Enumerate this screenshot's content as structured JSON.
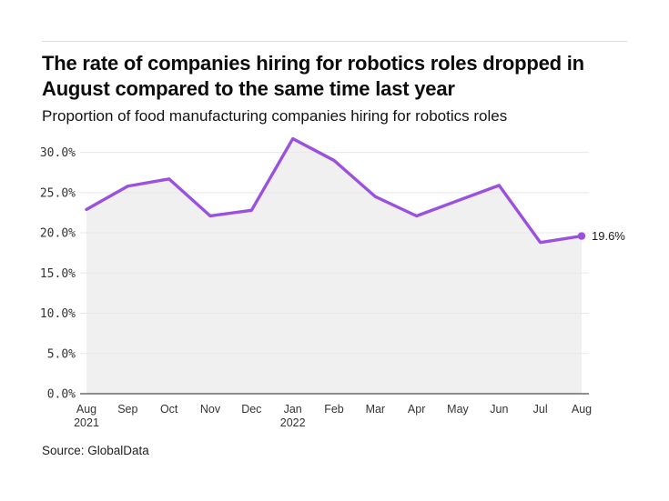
{
  "header": {
    "title_line1": "The rate of companies hiring for robotics roles dropped in",
    "title_line2": "August compared to the same time last year"
  },
  "footer": {
    "source": "Source: GlobalData"
  },
  "chart_data": {
    "type": "line",
    "title": "The rate of companies hiring for robotics roles dropped in August compared to the same time last year",
    "subtitle": "Proportion of food manufacturing companies hiring for robotics roles",
    "source": "Source: GlobalData",
    "categories": [
      "Aug",
      "Sep",
      "Oct",
      "Nov",
      "Dec",
      "Jan",
      "Feb",
      "Mar",
      "Apr",
      "May",
      "Jun",
      "Jul",
      "Aug"
    ],
    "year_labels": [
      "2021",
      null,
      null,
      null,
      null,
      "2022",
      null,
      null,
      null,
      null,
      null,
      null,
      null
    ],
    "values": [
      22.9,
      25.8,
      26.7,
      22.1,
      22.8,
      31.7,
      29.0,
      24.5,
      22.1,
      24.0,
      25.9,
      18.8,
      19.6
    ],
    "yticks": [
      0,
      5,
      10,
      15,
      20,
      25,
      30
    ],
    "ytick_labels": [
      "0.0%",
      "5.0%",
      "10.0%",
      "15.0%",
      "20.0%",
      "25.0%",
      "30.0%"
    ],
    "ylim": [
      0,
      32.5
    ],
    "end_label": "19.6%",
    "grid": true,
    "legend": false,
    "colors": {
      "line": "#9b51e0",
      "area": "#f0f0f0",
      "grid": "#e8e8e8",
      "axis": "#4d4d4d",
      "tick_text": "#333333",
      "end_label_text": "#1a1a1a"
    }
  }
}
